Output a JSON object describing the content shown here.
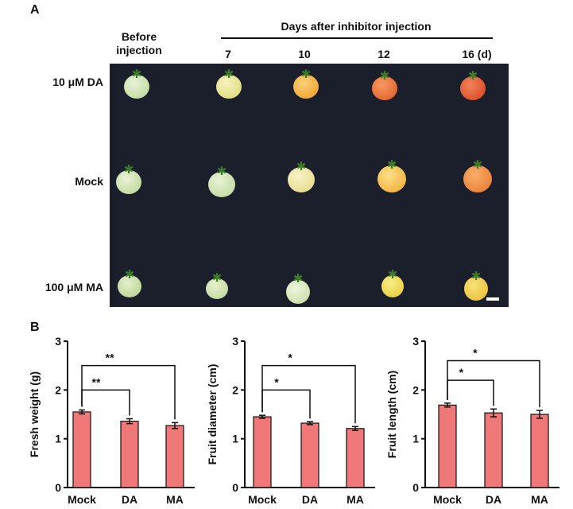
{
  "panel_a": {
    "label": "A",
    "before_label_line1": "Before",
    "before_label_line2": "injection",
    "days_header": "Days after inhibitor injection",
    "days": [
      "7",
      "10",
      "12",
      "16 (d)"
    ],
    "rows": [
      "10 μM DA",
      "Mock",
      "100 μM MA"
    ],
    "colors": {
      "background": "#1b1f2b",
      "green": "#cfe3b0",
      "pale_yellow": "#e8e6a0",
      "yellow": "#f2d23a",
      "orange": "#f5a22a",
      "red_orange": "#e9572a",
      "red": "#d9401f"
    }
  },
  "panel_b_label": "B",
  "chart_data": [
    {
      "type": "bar",
      "categories": [
        "Mock",
        "DA",
        "MA"
      ],
      "values": [
        1.55,
        1.36,
        1.27
      ],
      "errors": [
        0.04,
        0.05,
        0.06
      ],
      "ylabel": "Fresh weight (g)",
      "ylim": [
        0,
        3
      ],
      "yticks": [
        "0",
        "1",
        "2",
        "3"
      ],
      "significance": [
        {
          "from": 0,
          "to": 1,
          "label": "**",
          "level": 2.0
        },
        {
          "from": 0,
          "to": 2,
          "label": "**",
          "level": 2.5
        }
      ],
      "color": "#f07878"
    },
    {
      "type": "bar",
      "categories": [
        "Mock",
        "DA",
        "MA"
      ],
      "values": [
        1.45,
        1.32,
        1.21
      ],
      "errors": [
        0.03,
        0.03,
        0.04
      ],
      "ylabel": "Fruit diameter (cm)",
      "ylim": [
        0,
        3
      ],
      "yticks": [
        "0",
        "1",
        "2",
        "3"
      ],
      "significance": [
        {
          "from": 0,
          "to": 1,
          "label": "*",
          "level": 2.0
        },
        {
          "from": 0,
          "to": 2,
          "label": "*",
          "level": 2.5
        }
      ],
      "color": "#f07878"
    },
    {
      "type": "bar",
      "categories": [
        "Mock",
        "DA",
        "MA"
      ],
      "values": [
        1.69,
        1.53,
        1.5
      ],
      "errors": [
        0.04,
        0.08,
        0.08
      ],
      "ylabel": "Fruit length (cm)",
      "ylim": [
        0,
        3
      ],
      "yticks": [
        "0",
        "1",
        "2",
        "3"
      ],
      "significance": [
        {
          "from": 0,
          "to": 1,
          "label": "*",
          "level": 2.2
        },
        {
          "from": 0,
          "to": 2,
          "label": "*",
          "level": 2.6
        }
      ],
      "color": "#f07878"
    }
  ]
}
